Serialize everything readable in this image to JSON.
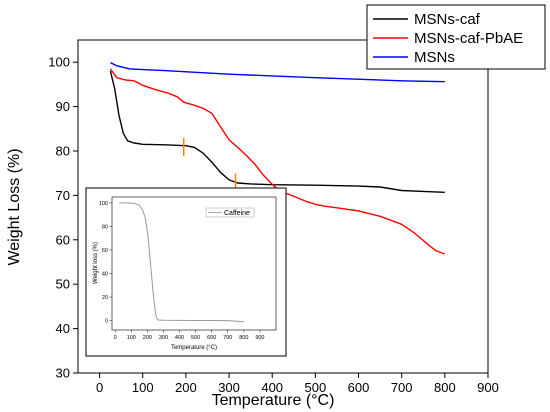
{
  "chart_data": [
    {
      "type": "line",
      "xlabel": "Temperature (°C)",
      "ylabel": "Weight Loss (%)",
      "xlim": [
        -50,
        900
      ],
      "ylim": [
        30,
        105
      ],
      "xticks": [
        0,
        100,
        200,
        300,
        400,
        500,
        600,
        700,
        800,
        900
      ],
      "yticks": [
        30,
        40,
        50,
        60,
        70,
        80,
        90,
        100
      ],
      "legend_position": "top-right",
      "series": [
        {
          "name": "MSNs-caf",
          "color": "#000000",
          "points": [
            [
              25,
              98
            ],
            [
              35,
              94
            ],
            [
              45,
              88
            ],
            [
              55,
              84
            ],
            [
              65,
              82.3
            ],
            [
              80,
              81.8
            ],
            [
              100,
              81.5
            ],
            [
              150,
              81.4
            ],
            [
              200,
              81.2
            ],
            [
              220,
              80.8
            ],
            [
              240,
              79.5
            ],
            [
              260,
              77.5
            ],
            [
              280,
              75.2
            ],
            [
              300,
              73.5
            ],
            [
              320,
              72.8
            ],
            [
              350,
              72.6
            ],
            [
              400,
              72.4
            ],
            [
              500,
              72.3
            ],
            [
              600,
              72.1
            ],
            [
              650,
              71.9
            ],
            [
              700,
              71.1
            ],
            [
              750,
              70.9
            ],
            [
              800,
              70.7
            ]
          ]
        },
        {
          "name": "MSNs-caf-PbAE",
          "color": "#ff0000",
          "points": [
            [
              25,
              98.5
            ],
            [
              40,
              96.5
            ],
            [
              60,
              96
            ],
            [
              80,
              95.8
            ],
            [
              100,
              94.8
            ],
            [
              130,
              93.8
            ],
            [
              160,
              93
            ],
            [
              180,
              92.2
            ],
            [
              195,
              91
            ],
            [
              220,
              90.3
            ],
            [
              240,
              89.6
            ],
            [
              260,
              88.5
            ],
            [
              280,
              85.5
            ],
            [
              300,
              82.5
            ],
            [
              320,
              80.8
            ],
            [
              340,
              79
            ],
            [
              360,
              77
            ],
            [
              380,
              74.5
            ],
            [
              400,
              72.5
            ],
            [
              420,
              70.8
            ],
            [
              440,
              70.2
            ],
            [
              460,
              69.4
            ],
            [
              480,
              68.6
            ],
            [
              500,
              68
            ],
            [
              520,
              67.6
            ],
            [
              550,
              67.2
            ],
            [
              600,
              66.5
            ],
            [
              650,
              65.3
            ],
            [
              700,
              63.5
            ],
            [
              730,
              61.5
            ],
            [
              760,
              59
            ],
            [
              780,
              57.5
            ],
            [
              800,
              56.8
            ]
          ]
        },
        {
          "name": "MSNs",
          "color": "#0000ff",
          "points": [
            [
              25,
              99.9
            ],
            [
              40,
              99.2
            ],
            [
              70,
              98.5
            ],
            [
              150,
              98.1
            ],
            [
              300,
              97.3
            ],
            [
              500,
              96.5
            ],
            [
              700,
              95.8
            ],
            [
              800,
              95.6
            ]
          ]
        }
      ],
      "markers": [
        {
          "x": 195,
          "y": 80.9,
          "color": "#ff8000"
        },
        {
          "x": 315,
          "y": 72.9,
          "color": "#ff8000"
        }
      ]
    },
    {
      "type": "line",
      "xlabel": "Temperature (°C)",
      "ylabel": "Weight loss (%)",
      "xlim": [
        -20,
        1000
      ],
      "ylim": [
        -8,
        105
      ],
      "xticks": [
        0,
        100,
        200,
        300,
        400,
        500,
        600,
        700,
        800,
        900
      ],
      "yticks": [
        0,
        20,
        40,
        60,
        80,
        100
      ],
      "legend_position": "top-right",
      "series": [
        {
          "name": "Caffeine",
          "color": "#999999",
          "points": [
            [
              25,
              100
            ],
            [
              80,
              100
            ],
            [
              120,
              99.5
            ],
            [
              150,
              98
            ],
            [
              170,
              94
            ],
            [
              185,
              88
            ],
            [
              195,
              80
            ],
            [
              205,
              70
            ],
            [
              215,
              55
            ],
            [
              225,
              40
            ],
            [
              235,
              25
            ],
            [
              245,
              12
            ],
            [
              255,
              3
            ],
            [
              265,
              0.5
            ],
            [
              300,
              0.2
            ],
            [
              500,
              0.1
            ],
            [
              700,
              0
            ],
            [
              800,
              -1
            ]
          ]
        }
      ]
    }
  ]
}
